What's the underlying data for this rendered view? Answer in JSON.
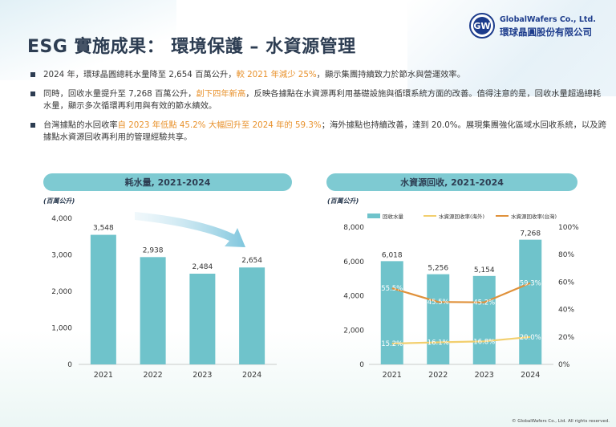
{
  "title": "ESG 實施成果： 環境保護 – 水資源管理",
  "logo": {
    "abbr": "GW",
    "name_en": "GlobalWafers Co., Ltd.",
    "name_zh": "環球晶圓股份有限公司"
  },
  "bullets": [
    {
      "segments": [
        {
          "text": "2024 年，環球晶圓總耗水量降至 2,654 百萬公升，",
          "highlight": false
        },
        {
          "text": "較 2021 年減少 25%",
          "highlight": true
        },
        {
          "text": "，顯示集團持續致力於節水與營運效率。",
          "highlight": false
        }
      ]
    },
    {
      "segments": [
        {
          "text": "同時，回收水量提升至 7,268 百萬公升，",
          "highlight": false
        },
        {
          "text": "創下四年新高",
          "highlight": true
        },
        {
          "text": "，反映各據點在水資源再利用基礎設施與循環系統方面的改善。值得注意的是，回收水量超過總耗水量，顯示多次循環再利用與有效的節水績效。",
          "highlight": false
        }
      ]
    },
    {
      "segments": [
        {
          "text": "台灣據點的水回收率",
          "highlight": false
        },
        {
          "text": "自 2023 年低點 45.2% 大幅回升至 2024 年的 59.3%",
          "highlight": true
        },
        {
          "text": "；海外據點也持續改善，達到 20.0%。展現集團強化區域水回收系統，以及跨據點水資源回收再利用的管理經驗共享。",
          "highlight": false
        }
      ]
    }
  ],
  "chart_data": [
    {
      "type": "bar",
      "title": "耗水量, 2021-2024",
      "unit_label": "(百萬公升)",
      "categories": [
        "2021",
        "2022",
        "2023",
        "2024"
      ],
      "values": [
        3548,
        2938,
        2484,
        2654
      ],
      "value_labels": [
        "3,548",
        "2,938",
        "2,484",
        "2,654"
      ],
      "ylim": [
        0,
        4000
      ],
      "yticks": [
        "0",
        "1,000",
        "2,000",
        "3,000",
        "4,000"
      ],
      "bar_color": "#6fc3cb",
      "trend_arrow": "downward-right"
    },
    {
      "type": "bar-line",
      "title": "水資源回收, 2021-2024",
      "unit_label": "(百萬公升)",
      "categories": [
        "2021",
        "2022",
        "2023",
        "2024"
      ],
      "bars": {
        "name": "回收水量",
        "values": [
          6018,
          5256,
          5154,
          7268
        ],
        "value_labels": [
          "6,018",
          "5,256",
          "5,154",
          "7,268"
        ],
        "color": "#6fc3cb"
      },
      "lines": [
        {
          "name": "水資源回收率(海外)",
          "values": [
            15.2,
            16.1,
            16.8,
            20.0
          ],
          "value_labels": [
            "15.2%",
            "16.1%",
            "16.8%",
            "20.0%"
          ],
          "color": "#f2cf6e"
        },
        {
          "name": "水資源回收率(台灣)",
          "values": [
            55.5,
            45.5,
            45.2,
            59.3
          ],
          "value_labels": [
            "55.5%",
            "45.5%",
            "45.2%",
            "59.3%"
          ],
          "color": "#e0913a"
        }
      ],
      "ylim_left": [
        0,
        8000
      ],
      "yticks_left": [
        "0",
        "2,000",
        "4,000",
        "6,000",
        "8,000"
      ],
      "ylim_right": [
        0,
        100
      ],
      "yticks_right": [
        "0%",
        "20%",
        "40%",
        "60%",
        "80%",
        "100%"
      ],
      "legend_position": "top"
    }
  ],
  "footer": "© GlobalWafers Co., Ltd. All rights reserved."
}
